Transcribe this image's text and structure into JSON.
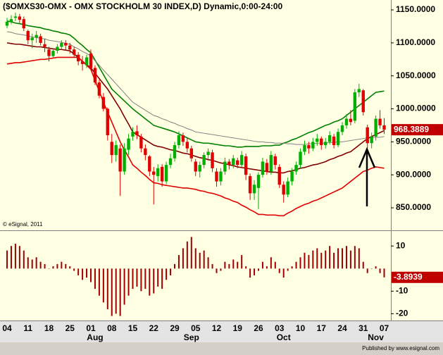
{
  "chart_data": [
    {
      "type": "candlestick",
      "title": "($OMXS30-OMX - OMX STOCKHOLM 30 INDEX,D) Dynamic,0:00-24:00",
      "watermark": "© eSignal, 2011",
      "categories": [
        "04",
        null,
        null,
        null,
        null,
        "11",
        null,
        null,
        null,
        null,
        "18",
        null,
        null,
        null,
        null,
        "25",
        null,
        null,
        null,
        null,
        "01",
        null,
        null,
        null,
        null,
        "08",
        null,
        null,
        null,
        null,
        "15",
        null,
        null,
        null,
        null,
        "22",
        null,
        null,
        null,
        null,
        "29",
        null,
        null,
        null,
        null,
        "05",
        null,
        null,
        null,
        null,
        "12",
        null,
        null,
        null,
        null,
        "19",
        null,
        null,
        null,
        null,
        "26",
        null,
        null,
        null,
        null,
        "03",
        null,
        null,
        null,
        null,
        "10",
        null,
        null,
        null,
        null,
        "17",
        null,
        null,
        null,
        null,
        "24",
        null,
        null,
        null,
        null,
        "31",
        null,
        null,
        null,
        null,
        "07"
      ],
      "months": [
        null,
        null,
        null,
        null,
        null,
        null,
        null,
        null,
        null,
        null,
        null,
        null,
        null,
        null,
        null,
        null,
        null,
        null,
        null,
        null,
        null,
        "Aug",
        null,
        null,
        null,
        null,
        null,
        null,
        null,
        null,
        null,
        null,
        null,
        null,
        null,
        null,
        null,
        null,
        null,
        null,
        null,
        null,
        null,
        null,
        "Sep",
        null,
        null,
        null,
        null,
        null,
        null,
        null,
        null,
        null,
        null,
        null,
        null,
        null,
        null,
        null,
        null,
        null,
        null,
        null,
        null,
        null,
        "Oct",
        null,
        null,
        null,
        null,
        null,
        null,
        null,
        null,
        null,
        null,
        null,
        null,
        null,
        null,
        null,
        null,
        null,
        null,
        null,
        null,
        null,
        "Nov",
        null,
        null
      ],
      "ohlc": [
        [
          1126,
          1138,
          1122,
          1132
        ],
        [
          1132,
          1142,
          1128,
          1136
        ],
        [
          1138,
          1146,
          1133,
          1140
        ],
        [
          1140,
          1144,
          1130,
          1135
        ],
        [
          1136,
          1140,
          1118,
          1122
        ],
        [
          1118,
          1120,
          1098,
          1104
        ],
        [
          1104,
          1114,
          1092,
          1108
        ],
        [
          1108,
          1118,
          1100,
          1112
        ],
        [
          1110,
          1114,
          1096,
          1100
        ],
        [
          1098,
          1106,
          1086,
          1094
        ],
        [
          1090,
          1094,
          1072,
          1080
        ],
        [
          1080,
          1092,
          1076,
          1088
        ],
        [
          1088,
          1098,
          1084,
          1094
        ],
        [
          1094,
          1104,
          1090,
          1100
        ],
        [
          1100,
          1104,
          1090,
          1096
        ],
        [
          1096,
          1100,
          1084,
          1090
        ],
        [
          1090,
          1094,
          1078,
          1082
        ],
        [
          1082,
          1086,
          1066,
          1072
        ],
        [
          1072,
          1080,
          1058,
          1068
        ],
        [
          1066,
          1082,
          1062,
          1078
        ],
        [
          1084,
          1090,
          1058,
          1062
        ],
        [
          1062,
          1066,
          1036,
          1040
        ],
        [
          1040,
          1044,
          1016,
          1020
        ],
        [
          1018,
          1024,
          996,
          1000
        ],
        [
          1000,
          1002,
          952,
          960
        ],
        [
          950,
          962,
          918,
          930
        ],
        [
          930,
          952,
          920,
          945
        ],
        [
          940,
          946,
          868,
          905
        ],
        [
          905,
          948,
          900,
          940
        ],
        [
          938,
          962,
          930,
          955
        ],
        [
          958,
          972,
          952,
          965
        ],
        [
          966,
          975,
          954,
          960
        ],
        [
          958,
          962,
          934,
          940
        ],
        [
          940,
          946,
          922,
          930
        ],
        [
          928,
          930,
          898,
          905
        ],
        [
          905,
          912,
          855,
          900
        ],
        [
          898,
          916,
          890,
          910
        ],
        [
          912,
          916,
          882,
          890
        ],
        [
          890,
          920,
          886,
          915
        ],
        [
          915,
          932,
          910,
          925
        ],
        [
          925,
          950,
          920,
          945
        ],
        [
          945,
          966,
          940,
          960
        ],
        [
          960,
          964,
          944,
          950
        ],
        [
          950,
          956,
          934,
          940
        ],
        [
          940,
          944,
          920,
          925
        ],
        [
          920,
          924,
          898,
          905
        ],
        [
          905,
          920,
          896,
          915
        ],
        [
          915,
          934,
          910,
          930
        ],
        [
          930,
          940,
          924,
          935
        ],
        [
          934,
          938,
          904,
          910
        ],
        [
          905,
          910,
          882,
          890
        ],
        [
          890,
          910,
          884,
          905
        ],
        [
          905,
          926,
          900,
          920
        ],
        [
          920,
          924,
          908,
          915
        ],
        [
          915,
          930,
          910,
          925
        ],
        [
          922,
          926,
          910,
          915
        ],
        [
          915,
          936,
          912,
          930
        ],
        [
          928,
          932,
          892,
          900
        ],
        [
          898,
          902,
          862,
          872
        ],
        [
          872,
          892,
          862,
          885
        ],
        [
          880,
          904,
          848,
          900
        ],
        [
          900,
          926,
          896,
          920
        ],
        [
          918,
          924,
          900,
          905
        ],
        [
          905,
          936,
          900,
          930
        ],
        [
          928,
          932,
          908,
          915
        ],
        [
          912,
          916,
          880,
          885
        ],
        [
          885,
          890,
          858,
          870
        ],
        [
          870,
          896,
          866,
          890
        ],
        [
          890,
          910,
          884,
          905
        ],
        [
          905,
          920,
          900,
          915
        ],
        [
          915,
          940,
          910,
          935
        ],
        [
          935,
          952,
          930,
          945
        ],
        [
          945,
          950,
          932,
          940
        ],
        [
          940,
          956,
          936,
          950
        ],
        [
          950,
          962,
          944,
          955
        ],
        [
          955,
          958,
          938,
          945
        ],
        [
          945,
          956,
          940,
          950
        ],
        [
          950,
          966,
          946,
          960
        ],
        [
          958,
          962,
          940,
          945
        ],
        [
          945,
          970,
          942,
          965
        ],
        [
          965,
          980,
          960,
          975
        ],
        [
          975,
          992,
          970,
          985
        ],
        [
          985,
          998,
          975,
          980
        ],
        [
          982,
          1030,
          978,
          1025
        ],
        [
          1025,
          1038,
          1018,
          1030
        ],
        [
          1028,
          1030,
          990,
          995
        ],
        [
          972,
          976,
          940,
          948
        ],
        [
          948,
          964,
          940,
          958
        ],
        [
          958,
          990,
          952,
          985
        ],
        [
          985,
          998,
          970,
          975
        ],
        [
          975,
          986,
          962,
          968.3889
        ]
      ],
      "up_color": "#00b000",
      "down_color": "#e00000",
      "lines": [
        {
          "color": "#008000",
          "values": [
            1133,
            1132,
            1130,
            1129,
            1128,
            1126,
            1125,
            1124,
            1123,
            1121,
            1120,
            1118,
            1117,
            1115,
            1114,
            1112,
            1107,
            1101,
            1096,
            1090,
            1085,
            1074,
            1063,
            1052,
            1041,
            1030,
            1024,
            1018,
            1012,
            1006,
            1000,
            995,
            990,
            985,
            980,
            975,
            973,
            971,
            969,
            967,
            965,
            962,
            959,
            956,
            953,
            950,
            949,
            948,
            948,
            947,
            946,
            945,
            944,
            944,
            943,
            942,
            942,
            943,
            943,
            943,
            943,
            944,
            944,
            944,
            945,
            945,
            948,
            950,
            953,
            955,
            958,
            961,
            964,
            966,
            969,
            972,
            975,
            977,
            980,
            982,
            985,
            990,
            995,
            1000,
            1005,
            1010,
            1015,
            1020,
            1025,
            1026,
            1027
          ]
        },
        {
          "color": "#808080",
          "values": [
            1117,
            1116,
            1114,
            1113,
            1112,
            1111,
            1109,
            1108,
            1107,
            1106,
            1104,
            1103,
            1102,
            1101,
            1099,
            1098,
            1094,
            1091,
            1087,
            1084,
            1080,
            1073,
            1066,
            1059,
            1052,
            1045,
            1038,
            1031,
            1024,
            1017,
            1010,
            1006,
            1002,
            998,
            994,
            990,
            988,
            985,
            983,
            980,
            978,
            975,
            973,
            970,
            968,
            965,
            964,
            963,
            962,
            961,
            960,
            959,
            958,
            957,
            956,
            955,
            954,
            953,
            952,
            951,
            950,
            950,
            949,
            949,
            948,
            948,
            948,
            947,
            947,
            946,
            946,
            946,
            947,
            947,
            948,
            948,
            948,
            949,
            949,
            950,
            950,
            951,
            952,
            953,
            954,
            955,
            956,
            956,
            957,
            957,
            958
          ]
        },
        {
          "color": "#800000",
          "values": [
            1100,
            1099,
            1098,
            1098,
            1097,
            1096,
            1095,
            1094,
            1094,
            1093,
            1092,
            1091,
            1090,
            1090,
            1089,
            1088,
            1083,
            1078,
            1072,
            1067,
            1062,
            1054,
            1046,
            1038,
            1030,
            1020,
            1010,
            1000,
            988,
            977,
            965,
            961,
            957,
            953,
            949,
            945,
            943,
            942,
            940,
            938,
            937,
            935,
            933,
            932,
            930,
            928,
            926,
            925,
            923,
            922,
            920,
            918,
            917,
            915,
            914,
            912,
            911,
            910,
            909,
            908,
            907,
            906,
            905,
            904,
            904,
            903,
            903,
            905,
            906,
            908,
            910,
            911,
            913,
            915,
            916,
            918,
            920,
            923,
            925,
            928,
            930,
            933,
            935,
            940,
            945,
            950,
            955,
            958,
            961,
            964,
            967
          ]
        },
        {
          "color": "#e00000",
          "values": [
            1068,
            1069,
            1070,
            1070,
            1071,
            1072,
            1073,
            1074,
            1075,
            1075,
            1076,
            1077,
            1078,
            1078,
            1078,
            1078,
            1078,
            1078,
            1072,
            1066,
            1060,
            1043,
            1027,
            1010,
            995,
            980,
            965,
            950,
            938,
            927,
            915,
            910,
            904,
            899,
            893,
            888,
            887,
            885,
            884,
            883,
            882,
            881,
            880,
            880,
            879,
            878,
            876,
            875,
            873,
            872,
            870,
            868,
            865,
            863,
            860,
            858,
            854,
            851,
            847,
            844,
            840,
            840,
            839,
            839,
            839,
            838,
            838,
            842,
            845,
            849,
            852,
            855,
            857,
            860,
            862,
            865,
            868,
            871,
            874,
            877,
            880,
            885,
            890,
            895,
            900,
            905,
            907,
            910,
            912,
            911,
            910
          ]
        }
      ],
      "ylim": [
        818,
        1165
      ],
      "yticks": [
        {
          "value": 1150,
          "label": "1150.0000"
        },
        {
          "value": 1100,
          "label": "1100.0000"
        },
        {
          "value": 1050,
          "label": "1050.0000"
        },
        {
          "value": 1000,
          "label": "1000.0000"
        },
        {
          "value": 950,
          "label": "950.0000"
        },
        {
          "value": 900,
          "label": "900.0000"
        },
        {
          "value": 850,
          "label": "850.0000"
        }
      ],
      "last_color": "#c00000"
    },
    {
      "type": "bar",
      "values": [
        8,
        10,
        11,
        10,
        8,
        5,
        4,
        5,
        3,
        2,
        0,
        1,
        2,
        3,
        2,
        1,
        -1,
        -3,
        -5,
        -4,
        -6,
        -9,
        -12,
        -15,
        -18,
        -21,
        -20,
        -21,
        -16,
        -12,
        -9,
        -8,
        -10,
        -9,
        -12,
        -11,
        -8,
        -9,
        -5,
        -3,
        2,
        6,
        9,
        12,
        14,
        9,
        7,
        8,
        5,
        2,
        -2,
        -1,
        3,
        2,
        4,
        3,
        6,
        1,
        -4,
        -3,
        -1,
        3,
        1,
        5,
        3,
        -2,
        -4,
        -1,
        1,
        3,
        5,
        7,
        6,
        8,
        9,
        7,
        8,
        10,
        7,
        9,
        9,
        10,
        8,
        10,
        9,
        3,
        -2,
        0,
        1,
        -2,
        -3.8939
      ],
      "color": "#a00000",
      "ylim": [
        -23,
        16
      ],
      "yticks": [
        10,
        -10,
        -20
      ],
      "last_color": "#c00000"
    }
  ],
  "footer": "Published by www.esignal.com"
}
